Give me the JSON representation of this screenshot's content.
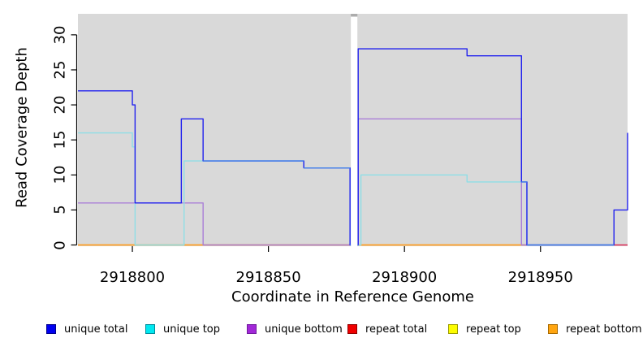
{
  "chart_data": {
    "type": "line",
    "subtype": "step-coverage",
    "title": "",
    "xlabel": "Coordinate in Reference Genome",
    "ylabel": "Read Coverage Depth",
    "xlim": [
      2918780,
      2918982
    ],
    "ylim": [
      0,
      33
    ],
    "x_ticks": [
      2918800,
      2918850,
      2918900,
      2918950
    ],
    "y_ticks": [
      0,
      5,
      10,
      15,
      20,
      25,
      30
    ],
    "grid": false,
    "plot_bg": "#D9D9D9",
    "axis_color": "#000000",
    "gap_region": {
      "x_start": 2918880.3,
      "x_end": 2918882.7,
      "fill": "#FFFFFF",
      "cap_color": "#ACACAC"
    },
    "legend_position": "bottom",
    "series": [
      {
        "name": "repeat total",
        "line_color": "#DC2A55",
        "x_end": 2918982,
        "steps": [
          [
            2918780,
            0
          ]
        ]
      },
      {
        "name": "repeat top",
        "line_color": "#F0E800",
        "x_end": 2918977,
        "steps": [
          [
            2918780,
            0
          ]
        ]
      },
      {
        "name": "repeat bottom",
        "line_color": "#FFA033",
        "x_end": 2918977,
        "steps": [
          [
            2918780,
            0
          ]
        ]
      },
      {
        "name": "unique bottom",
        "line_color": "#AA7FD8",
        "x_end": 2918977,
        "steps": [
          [
            2918780,
            6
          ],
          [
            2918826,
            0
          ],
          [
            2918883,
            18
          ],
          [
            2918943,
            0
          ]
        ]
      },
      {
        "name": "unique top",
        "line_color": "#8FDEE6",
        "x_end": 2918977,
        "steps": [
          [
            2918780,
            16
          ],
          [
            2918800,
            14
          ],
          [
            2918801,
            0
          ],
          [
            2918819,
            12
          ],
          [
            2918863,
            11
          ],
          [
            2918880,
            0
          ],
          [
            2918884,
            10
          ],
          [
            2918923,
            9
          ],
          [
            2918945,
            0
          ]
        ]
      },
      {
        "name": "unique total",
        "line_color": "#2222EE",
        "overlap_with": "unique top",
        "overlap_color": "#4A86E8",
        "x_end": 2918982,
        "steps": [
          [
            2918780,
            22
          ],
          [
            2918800,
            20
          ],
          [
            2918801,
            6
          ],
          [
            2918818,
            18
          ],
          [
            2918826,
            12
          ],
          [
            2918863,
            11
          ],
          [
            2918880,
            0
          ],
          [
            2918883,
            28
          ],
          [
            2918923,
            27
          ],
          [
            2918943,
            9
          ],
          [
            2918945,
            0
          ],
          [
            2918977,
            5
          ],
          [
            2918982,
            16
          ]
        ]
      }
    ],
    "legend": [
      {
        "label": "unique total",
        "fill": "#0000F0",
        "border": "#00008B"
      },
      {
        "label": "unique top",
        "fill": "#00E8F0",
        "border": "#008B9B"
      },
      {
        "label": "unique bottom",
        "fill": "#A228D8",
        "border": "#701A9E"
      },
      {
        "label": "repeat total",
        "fill": "#F00000",
        "border": "#900000"
      },
      {
        "label": "repeat top",
        "fill": "#FCFC00",
        "border": "#9C9C00"
      },
      {
        "label": "repeat bottom",
        "fill": "#FFA510",
        "border": "#A86A00"
      }
    ]
  }
}
